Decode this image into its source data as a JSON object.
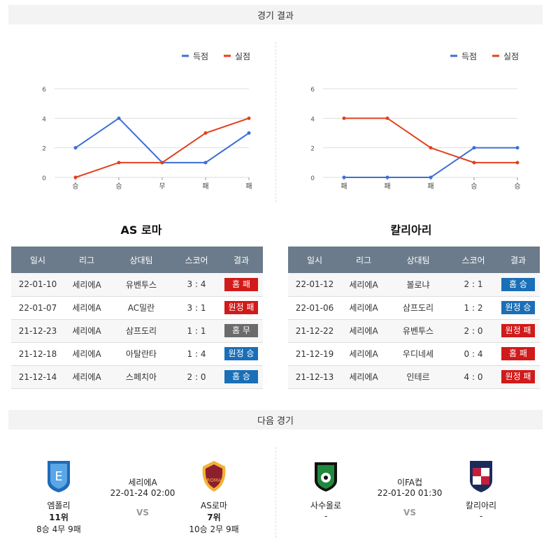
{
  "header": {
    "title": "경기 결과"
  },
  "next_header": {
    "title": "다음 경기"
  },
  "legend": {
    "for": "득점",
    "against": "실점"
  },
  "colors": {
    "for": "#3b6fd6",
    "against": "#e2401c",
    "win": "#1a6fb7",
    "lose": "#d11a1a",
    "draw": "#6b6b6b"
  },
  "chart_data": [
    {
      "type": "line",
      "categories": [
        "승",
        "승",
        "무",
        "패",
        "패"
      ],
      "series": [
        {
          "name": "득점",
          "values": [
            2,
            4,
            1,
            1,
            3
          ]
        },
        {
          "name": "실점",
          "values": [
            0,
            1,
            1,
            3,
            4
          ]
        }
      ],
      "ylim": [
        0,
        6
      ],
      "yticks": [
        0,
        2,
        4,
        6
      ]
    },
    {
      "type": "line",
      "categories": [
        "패",
        "패",
        "패",
        "승",
        "승"
      ],
      "series": [
        {
          "name": "득점",
          "values": [
            0,
            0,
            0,
            2,
            2
          ]
        },
        {
          "name": "실점",
          "values": [
            4,
            4,
            2,
            1,
            1
          ]
        }
      ],
      "ylim": [
        0,
        6
      ],
      "yticks": [
        0,
        2,
        4,
        6
      ]
    }
  ],
  "teams": [
    {
      "name": "AS 로마",
      "columns": [
        "일시",
        "리그",
        "상대팀",
        "스코어",
        "결과"
      ],
      "rows": [
        {
          "date": "22-01-10",
          "league": "세리에A",
          "opp": "유벤투스",
          "score": "3 : 4",
          "result": "홈 패",
          "kind": "lose"
        },
        {
          "date": "22-01-07",
          "league": "세리에A",
          "opp": "AC밀란",
          "score": "3 : 1",
          "result": "원정 패",
          "kind": "lose"
        },
        {
          "date": "21-12-23",
          "league": "세리에A",
          "opp": "삼프도리",
          "score": "1 : 1",
          "result": "홈 무",
          "kind": "draw"
        },
        {
          "date": "21-12-18",
          "league": "세리에A",
          "opp": "아탈란타",
          "score": "1 : 4",
          "result": "원정 승",
          "kind": "win"
        },
        {
          "date": "21-12-14",
          "league": "세리에A",
          "opp": "스페치아",
          "score": "2 : 0",
          "result": "홈 승",
          "kind": "win"
        }
      ]
    },
    {
      "name": "칼리아리",
      "columns": [
        "일시",
        "리그",
        "상대팀",
        "스코어",
        "결과"
      ],
      "rows": [
        {
          "date": "22-01-12",
          "league": "세리에A",
          "opp": "볼로냐",
          "score": "2 : 1",
          "result": "홈 승",
          "kind": "win"
        },
        {
          "date": "22-01-06",
          "league": "세리에A",
          "opp": "삼프도리",
          "score": "1 : 2",
          "result": "원정 승",
          "kind": "win"
        },
        {
          "date": "21-12-22",
          "league": "세리에A",
          "opp": "유벤투스",
          "score": "2 : 0",
          "result": "원정 패",
          "kind": "lose"
        },
        {
          "date": "21-12-19",
          "league": "세리에A",
          "opp": "우디네세",
          "score": "0 : 4",
          "result": "홈 패",
          "kind": "lose"
        },
        {
          "date": "21-12-13",
          "league": "세리에A",
          "opp": "인테르",
          "score": "4 : 0",
          "result": "원정 패",
          "kind": "lose"
        }
      ]
    }
  ],
  "next_matches": [
    {
      "league": "세리에A",
      "datetime": "22-01-24 02:00",
      "vs": "VS",
      "home": {
        "name": "엠폴리",
        "rank": "11위",
        "record": "8승 4무 9패"
      },
      "away": {
        "name": "AS로마",
        "rank": "7위",
        "record": "10승 2무 9패"
      }
    },
    {
      "league": "이FA컵",
      "datetime": "22-01-20 01:30",
      "vs": "VS",
      "home": {
        "name": "사수올로",
        "rank": "",
        "record": "-"
      },
      "away": {
        "name": "칼리아리",
        "rank": "",
        "record": "-"
      }
    }
  ]
}
